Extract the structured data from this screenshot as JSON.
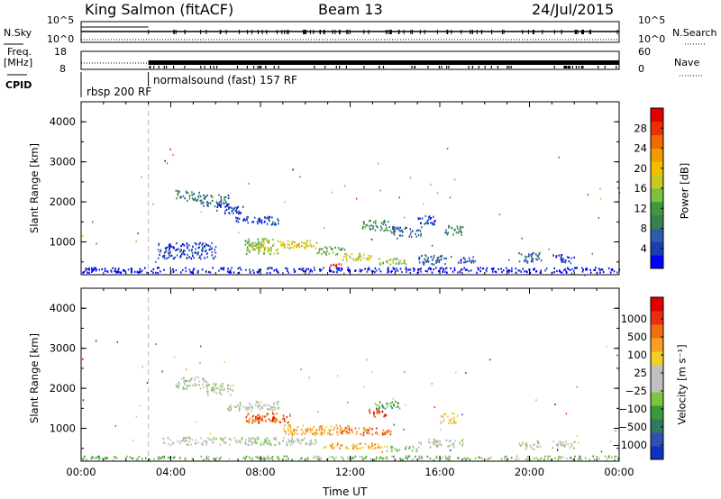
{
  "header": {
    "station": "King Salmon (fitACF)",
    "beam": "Beam 13",
    "date": "24/Jul/2015"
  },
  "strip_panels": {
    "nsky_label": "N.Sky",
    "nsky_ticks": [
      "10^5",
      "10^0"
    ],
    "nsearch_label": "N.Search",
    "nsearch_ticks": [
      "10^5",
      "10^0"
    ],
    "freq_label_line1": "Freq.",
    "freq_label_line2": "[MHz]",
    "freq_ticks": [
      "18",
      "8"
    ],
    "nave_label": "Nave",
    "nave_ticks": [
      "60",
      "0"
    ],
    "cpid_label": "CPID",
    "cpid_modes": [
      "rbsp 200 RF",
      "normalsound (fast) 157 RF"
    ]
  },
  "chart_data": [
    {
      "type": "heatmap",
      "name": "power",
      "ylabel": "Slant Range [km]",
      "xlabel": "",
      "ylim": [
        180,
        4500
      ],
      "yticks": [
        "4000",
        "3000",
        "2000",
        "1000"
      ],
      "xlim_hours": [
        0,
        24
      ],
      "colorbar": {
        "label": "Power [dB]",
        "ticks": [
          "28",
          "24",
          "20",
          "16",
          "12",
          "8",
          "4"
        ],
        "colors": [
          "#0000ff",
          "#1a3fb0",
          "#2a5ea8",
          "#3b7f4f",
          "#3f9a3f",
          "#7bc142",
          "#c8c820",
          "#f0c000",
          "#f39a00",
          "#ef6a00",
          "#e83000",
          "#e00000"
        ]
      },
      "regions": [
        {
          "t0": 4.2,
          "t1": 5.3,
          "r0": 2050,
          "r1": 2300,
          "level": 3
        },
        {
          "t0": 5.3,
          "t1": 6.6,
          "r0": 1900,
          "r1": 2200,
          "level": 2
        },
        {
          "t0": 6.0,
          "t1": 7.2,
          "r0": 1700,
          "r1": 1950,
          "level": 1
        },
        {
          "t0": 6.8,
          "t1": 8.8,
          "r0": 1450,
          "r1": 1650,
          "level": 1
        },
        {
          "t0": 7.3,
          "t1": 8.8,
          "r0": 700,
          "r1": 1100,
          "level": 5
        },
        {
          "t0": 7.6,
          "t1": 8.4,
          "r0": 800,
          "r1": 1000,
          "level": 7
        },
        {
          "t0": 8.8,
          "t1": 10.5,
          "r0": 850,
          "r1": 1050,
          "level": 6
        },
        {
          "t0": 9.0,
          "t1": 9.8,
          "r0": 880,
          "r1": 980,
          "level": 8
        },
        {
          "t0": 3.4,
          "t1": 6.0,
          "r0": 600,
          "r1": 1000,
          "level": 1
        },
        {
          "t0": 10.5,
          "t1": 11.8,
          "r0": 700,
          "r1": 900,
          "level": 4
        },
        {
          "t0": 11.0,
          "t1": 11.6,
          "r0": 420,
          "r1": 480,
          "level": 10
        },
        {
          "t0": 11.6,
          "t1": 13.0,
          "r0": 550,
          "r1": 750,
          "level": 6
        },
        {
          "t0": 12.5,
          "t1": 13.8,
          "r0": 1300,
          "r1": 1550,
          "level": 3
        },
        {
          "t0": 13.0,
          "t1": 14.5,
          "r0": 450,
          "r1": 600,
          "level": 5
        },
        {
          "t0": 13.8,
          "t1": 15.2,
          "r0": 1150,
          "r1": 1400,
          "level": 2
        },
        {
          "t0": 15.0,
          "t1": 15.8,
          "r0": 1450,
          "r1": 1700,
          "level": 1
        },
        {
          "t0": 15.0,
          "t1": 16.5,
          "r0": 450,
          "r1": 700,
          "level": 2
        },
        {
          "t0": 16.2,
          "t1": 17.0,
          "r0": 1200,
          "r1": 1450,
          "level": 3
        },
        {
          "t0": 16.6,
          "t1": 17.6,
          "r0": 500,
          "r1": 650,
          "level": 1
        },
        {
          "t0": 19.5,
          "t1": 20.5,
          "r0": 500,
          "r1": 750,
          "level": 2
        },
        {
          "t0": 21.0,
          "t1": 22.0,
          "r0": 520,
          "r1": 700,
          "level": 1
        },
        {
          "t0": 0.0,
          "t1": 24.0,
          "r0": 250,
          "r1": 380,
          "level": 0
        }
      ]
    },
    {
      "type": "heatmap",
      "name": "velocity",
      "ylabel": "Slant Range [km]",
      "xlabel": "Time UT",
      "ylim": [
        180,
        4500
      ],
      "yticks": [
        "4000",
        "3000",
        "2000",
        "1000"
      ],
      "xticks": [
        "00:00",
        "04:00",
        "08:00",
        "12:00",
        "16:00",
        "20:00",
        "00:00"
      ],
      "colorbar": {
        "label": "Velocity [m s⁻¹]",
        "ticks": [
          "1000",
          "500",
          "100",
          "25",
          "−25",
          "−100",
          "−500",
          "−1000"
        ],
        "colors": [
          "#1030c0",
          "#3050b0",
          "#307a60",
          "#3a9a3a",
          "#7ac840",
          "#c0c0c0",
          "#c0c0c0",
          "#f0d020",
          "#f5a020",
          "#f07010",
          "#e83010",
          "#e00000"
        ]
      },
      "regions": [
        {
          "t0": 4.2,
          "t1": 5.6,
          "r0": 2000,
          "r1": 2300,
          "level": 5
        },
        {
          "t0": 5.6,
          "t1": 6.8,
          "r0": 1850,
          "r1": 2150,
          "level": 5
        },
        {
          "t0": 6.5,
          "t1": 8.8,
          "r0": 1450,
          "r1": 1700,
          "level": 5
        },
        {
          "t0": 7.3,
          "t1": 9.3,
          "r0": 1150,
          "r1": 1400,
          "level": 9
        },
        {
          "t0": 7.6,
          "t1": 8.6,
          "r0": 1200,
          "r1": 1330,
          "level": 10
        },
        {
          "t0": 9.0,
          "t1": 12.0,
          "r0": 850,
          "r1": 1100,
          "level": 8
        },
        {
          "t0": 11.5,
          "t1": 13.8,
          "r0": 850,
          "r1": 1050,
          "level": 9
        },
        {
          "t0": 12.8,
          "t1": 13.6,
          "r0": 1300,
          "r1": 1500,
          "level": 10
        },
        {
          "t0": 13.0,
          "t1": 14.2,
          "r0": 1500,
          "r1": 1700,
          "level": 3
        },
        {
          "t0": 3.6,
          "t1": 10.5,
          "r0": 600,
          "r1": 800,
          "level": 5
        },
        {
          "t0": 10.5,
          "t1": 13.5,
          "r0": 500,
          "r1": 650,
          "level": 8
        },
        {
          "t0": 13.5,
          "t1": 15.0,
          "r0": 450,
          "r1": 580,
          "level": 4
        },
        {
          "t0": 15.0,
          "t1": 17.0,
          "r0": 550,
          "r1": 750,
          "level": 5
        },
        {
          "t0": 16.0,
          "t1": 16.8,
          "r0": 1150,
          "r1": 1400,
          "level": 7
        },
        {
          "t0": 19.5,
          "t1": 20.5,
          "r0": 500,
          "r1": 700,
          "level": 5
        },
        {
          "t0": 21.0,
          "t1": 22.0,
          "r0": 500,
          "r1": 700,
          "level": 5
        },
        {
          "t0": 0.0,
          "t1": 24.0,
          "r0": 230,
          "r1": 330,
          "level": 4
        }
      ]
    }
  ]
}
